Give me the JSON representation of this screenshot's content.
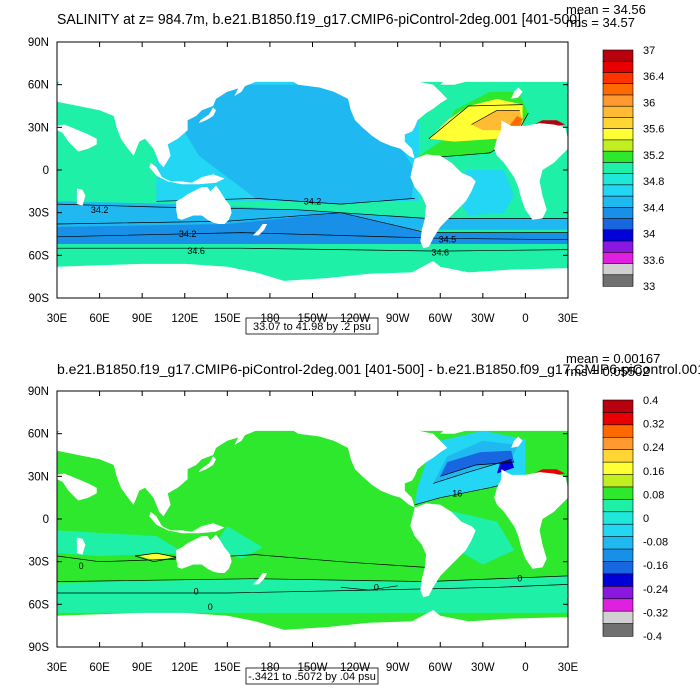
{
  "chart_data": [
    {
      "type": "heatmap",
      "title": "SALINITY at z= 984.7m, b.e21.B1850.f19_g17.CMIP6-piControl-2deg.001 [401-500]",
      "stats": {
        "mean": "mean = 34.56",
        "rms": "rms = 34.57"
      },
      "x_ticks": [
        "30E",
        "60E",
        "90E",
        "120E",
        "150E",
        "180",
        "150W",
        "120W",
        "90W",
        "60W",
        "30W",
        "0",
        "30E"
      ],
      "y_ticks": [
        "90N",
        "60N",
        "30N",
        "0",
        "30S",
        "60S",
        "90S"
      ],
      "xlim": [
        30,
        390
      ],
      "ylim": [
        -90,
        90
      ],
      "range_label": "33.07 to 41.98 by .2 psu",
      "contour_labels": [
        {
          "text": "34.2",
          "lon": 60,
          "lat": -28
        },
        {
          "text": "34.2",
          "lon": 210,
          "lat": -22
        },
        {
          "text": "34.2",
          "lon": 122,
          "lat": -45
        },
        {
          "text": "34.6",
          "lon": 128,
          "lat": -57
        },
        {
          "text": "34.5",
          "lon": 305,
          "lat": -49
        },
        {
          "text": "34.6",
          "lon": 300,
          "lat": -58
        }
      ],
      "colorbar": {
        "labels": [
          "37",
          "36.4",
          "36",
          "35.6",
          "35.2",
          "34.8",
          "34.4",
          "34",
          "33.6",
          "33"
        ],
        "colors": [
          "#b8000e",
          "#e80000",
          "#ff3300",
          "#ff6a00",
          "#ff9930",
          "#ffbb33",
          "#ffd633",
          "#ffff33",
          "#c0ee20",
          "#2ee82e",
          "#1ef0a8",
          "#20e8d8",
          "#22d6f4",
          "#20b8f0",
          "#1890e8",
          "#1866e0",
          "#0000d8",
          "#8a18e0",
          "#e020e0",
          "#d0d0d0",
          "#707070"
        ]
      }
    },
    {
      "type": "heatmap",
      "title": "b.e21.B1850.f19_g17.CMIP6-piControl-2deg.001 [401-500] - b.e21.B1850.f09_g17.CMIP6-piControl.001",
      "stats": {
        "mean": "mean = 0.00167",
        "rms": "rms = 0.05502"
      },
      "x_ticks": [
        "30E",
        "60E",
        "90E",
        "120E",
        "150E",
        "180",
        "150W",
        "120W",
        "90W",
        "60W",
        "30W",
        "0",
        "30E"
      ],
      "y_ticks": [
        "90N",
        "60N",
        "30N",
        "0",
        "30S",
        "60S",
        "90S"
      ],
      "xlim": [
        30,
        390
      ],
      "ylim": [
        -90,
        90
      ],
      "range_label": "-.3421 to .5072 by .04 psu",
      "contour_labels": [
        {
          "text": "16",
          "lon": 312,
          "lat": 18
        },
        {
          "text": "0",
          "lon": 47,
          "lat": -33
        },
        {
          "text": "0",
          "lon": 128,
          "lat": -51
        },
        {
          "text": "0",
          "lon": 138,
          "lat": -62
        },
        {
          "text": "0",
          "lon": 255,
          "lat": -48
        },
        {
          "text": "0",
          "lon": 356,
          "lat": -42
        }
      ],
      "colorbar": {
        "labels": [
          "0.4",
          "0.32",
          "0.24",
          "0.16",
          "0.08",
          "0",
          "-0.08",
          "-0.16",
          "-0.24",
          "-0.32",
          "-0.4"
        ],
        "colors": [
          "#b8000e",
          "#e80000",
          "#ff6a00",
          "#ff9930",
          "#ffd633",
          "#ffff33",
          "#c0ee20",
          "#2ee82e",
          "#1ef0a8",
          "#20e8d8",
          "#22d6f4",
          "#20b8f0",
          "#1890e8",
          "#1866e0",
          "#0000d8",
          "#8a18e0",
          "#e020e0",
          "#d0d0d0",
          "#707070"
        ]
      }
    }
  ]
}
